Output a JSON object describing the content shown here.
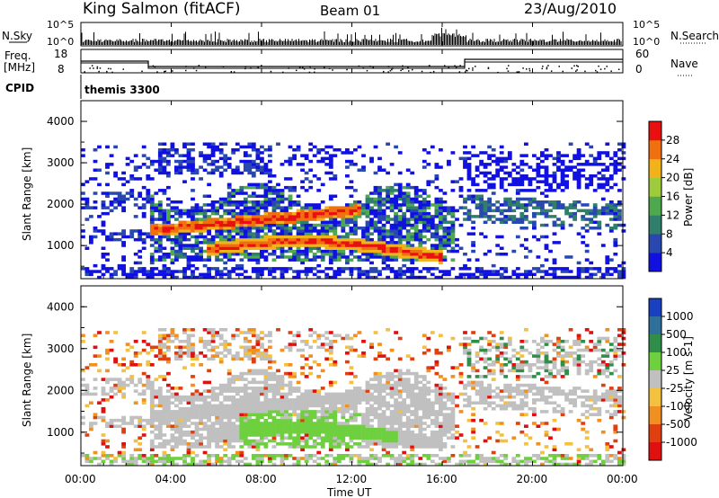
{
  "header": {
    "station": "King Salmon (fitACF)",
    "beam": "Beam 01",
    "date": "23/Aug/2010"
  },
  "top_panels": {
    "nsky_label": "N.Sky",
    "nsky_ticks": [
      "10^5",
      "10^0"
    ],
    "nsearch_label": "N.Search",
    "nsearch_ticks": [
      "10^5",
      "10^0"
    ],
    "freq_label": "Freq.",
    "freq_unit": "[MHz]",
    "freq_ticks": [
      "18",
      "8"
    ],
    "nave_label": "Nave",
    "nave_ticks": [
      "60",
      "0"
    ],
    "cpid_label": "CPID",
    "cpid_value": "themis 3300"
  },
  "chart_data": [
    {
      "type": "heatmap",
      "name": "power",
      "ylabel": "Slant Range [km]",
      "yticks": [
        "1000",
        "2000",
        "3000",
        "4000"
      ],
      "ylim": [
        200,
        4500
      ],
      "colorbar_label": "Power [dB]",
      "colorbar_ticks": [
        "4",
        "8",
        "12",
        "16",
        "20",
        "24",
        "28"
      ],
      "colors": [
        "#1010e0",
        "#2848b0",
        "#2f7f6a",
        "#4ea84e",
        "#9ecb3c",
        "#f2b21a",
        "#f07010",
        "#e81010"
      ]
    },
    {
      "type": "heatmap",
      "name": "velocity",
      "ylabel": "Slant Range [km]",
      "yticks": [
        "1000",
        "2000",
        "3000",
        "4000"
      ],
      "ylim": [
        200,
        4500
      ],
      "colorbar_label": "Velocity [m s-1]",
      "colorbar_ticks": [
        "1000",
        "500",
        "100",
        "25",
        "-25",
        "-100",
        "-500",
        "-1000"
      ],
      "colors": [
        "#1840c0",
        "#2f6f9a",
        "#2f8f4a",
        "#6fd03f",
        "#c0c0c0",
        "#f4c040",
        "#f09020",
        "#e04010",
        "#e01010"
      ]
    }
  ],
  "xaxis": {
    "ticks": [
      "00:00",
      "04:00",
      "08:00",
      "12:00",
      "16:00",
      "20:00",
      "00:00"
    ],
    "label": "Time UT"
  }
}
